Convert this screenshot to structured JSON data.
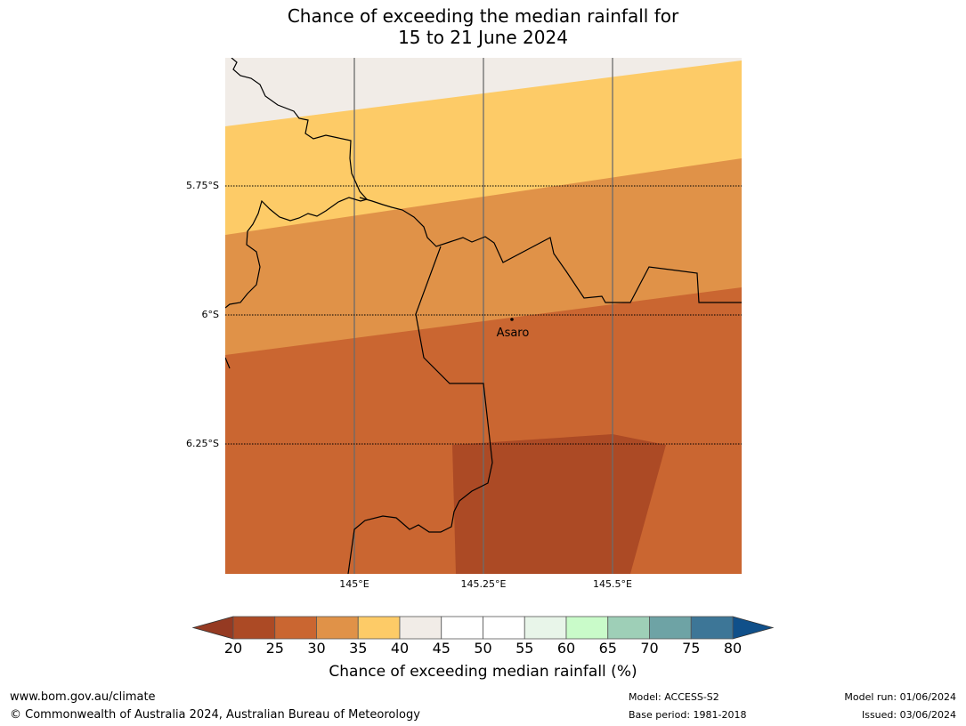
{
  "title": {
    "line1": "Chance of exceeding the median rainfall for",
    "line2": "15 to 21 June 2024"
  },
  "map": {
    "place_label": "Asaro",
    "lat_labels": [
      "5.75°S",
      "6°S",
      "6.25°S"
    ],
    "lon_labels": [
      "145°E",
      "145.25°E",
      "145.5°E"
    ],
    "colors": {
      "c45_50": "#f1ece7",
      "c35_40": "#fdcb67",
      "c30_35": "#e09248",
      "c25_30": "#ca6631",
      "c20_25": "#ac4a25",
      "border": "#000000",
      "meridian": "#6b6b6b"
    }
  },
  "colorbar": {
    "ticks": [
      "20",
      "25",
      "30",
      "35",
      "40",
      "45",
      "50",
      "55",
      "60",
      "65",
      "70",
      "75",
      "80"
    ],
    "colors": [
      "#ac4a25",
      "#ca6631",
      "#e09248",
      "#fdcb67",
      "#f1ece7",
      "#ffffff",
      "#ffffff",
      "#e8f5e9",
      "#c9fbc9",
      "#9ecfb7",
      "#6ea3a5",
      "#3d7697"
    ],
    "under_color": "#953a22",
    "over_color": "#10508a",
    "label": "Chance of exceeding median rainfall (%)"
  },
  "footer": {
    "website": "www.bom.gov.au/climate",
    "copyright": "© Commonwealth of Australia 2024, Australian Bureau of Meteorology",
    "model": "Model: ACCESS-S2",
    "base_period": "Base period: 1981-2018",
    "model_run": "Model run: 01/06/2024",
    "issued": "Issued: 03/06/2024"
  }
}
